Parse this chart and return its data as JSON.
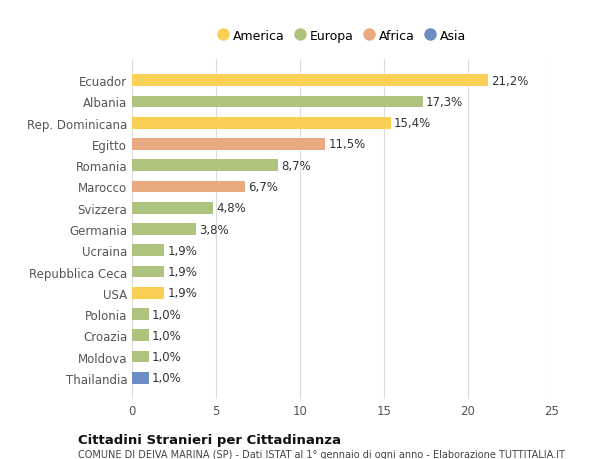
{
  "categories": [
    "Thailandia",
    "Moldova",
    "Croazia",
    "Polonia",
    "USA",
    "Repubblica Ceca",
    "Ucraina",
    "Germania",
    "Svizzera",
    "Marocco",
    "Romania",
    "Egitto",
    "Rep. Dominicana",
    "Albania",
    "Ecuador"
  ],
  "values": [
    1.0,
    1.0,
    1.0,
    1.0,
    1.9,
    1.9,
    1.9,
    3.8,
    4.8,
    6.7,
    8.7,
    11.5,
    15.4,
    17.3,
    21.2
  ],
  "labels": [
    "1,0%",
    "1,0%",
    "1,0%",
    "1,0%",
    "1,9%",
    "1,9%",
    "1,9%",
    "3,8%",
    "4,8%",
    "6,7%",
    "8,7%",
    "11,5%",
    "15,4%",
    "17,3%",
    "21,2%"
  ],
  "colors": [
    "#6b8dc4",
    "#aec47e",
    "#aec47e",
    "#aec47e",
    "#f9d054",
    "#aec47e",
    "#aec47e",
    "#aec47e",
    "#aec47e",
    "#e8aa7e",
    "#aec47e",
    "#e8aa7e",
    "#f9d054",
    "#aec47e",
    "#f9d054"
  ],
  "legend_colors": {
    "America": "#f9d054",
    "Europa": "#aec47e",
    "Africa": "#e8aa7e",
    "Asia": "#6b8dc4"
  },
  "xlim": [
    0,
    25
  ],
  "xticks": [
    0,
    5,
    10,
    15,
    20,
    25
  ],
  "title": "Cittadini Stranieri per Cittadinanza",
  "subtitle": "COMUNE DI DEIVA MARINA (SP) - Dati ISTAT al 1° gennaio di ogni anno - Elaborazione TUTTITALIA.IT",
  "bg_color": "#ffffff",
  "plot_bg_color": "#ffffff",
  "grid_color": "#dddddd",
  "label_fontsize": 8.5,
  "tick_fontsize": 8.5,
  "bar_height": 0.55
}
